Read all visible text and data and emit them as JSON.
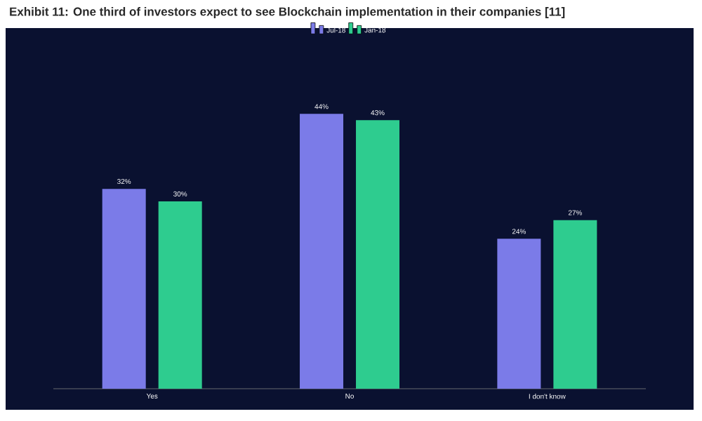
{
  "chart_data": {
    "type": "bar",
    "title": "Exhibit 11: One third of investors expect to see Blockchain implementation in their companies [11]",
    "categories": [
      "Yes",
      "No",
      "I don't know"
    ],
    "series": [
      {
        "name": "Jul-18",
        "color": "#7b7be8",
        "values": [
          32,
          44,
          24
        ],
        "value_labels": [
          "32%",
          "44%",
          "24%"
        ]
      },
      {
        "name": "Jan-18",
        "color": "#2ecc8f",
        "values": [
          30,
          43,
          27
        ],
        "value_labels": [
          "30%",
          "43%",
          "27%"
        ]
      }
    ],
    "data_labels": true,
    "legend": "top",
    "grid": false
  }
}
